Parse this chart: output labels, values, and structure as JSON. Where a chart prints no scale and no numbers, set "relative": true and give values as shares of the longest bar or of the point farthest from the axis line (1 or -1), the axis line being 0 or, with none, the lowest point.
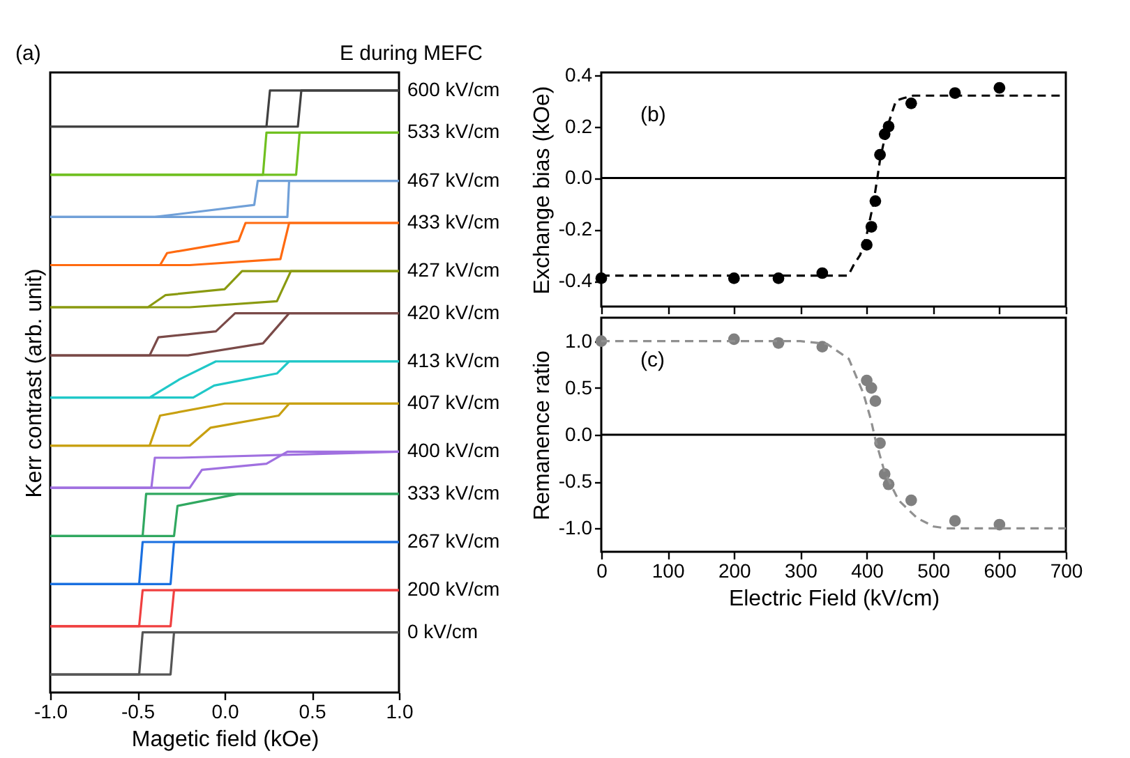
{
  "chart_data": [
    {
      "type": "line",
      "relative": true,
      "xlabel": "Magetic field (kOe)",
      "ylabel": "Kerr contrast (arb. unit)",
      "annotations": [
        "(a)",
        "E during MEFC"
      ],
      "xlim": [
        -1,
        1
      ],
      "xticks": [
        {
          "value": -1,
          "label": "-1.0"
        },
        {
          "value": -0.5,
          "label": "-0.5"
        },
        {
          "value": 0,
          "label": "0.0"
        },
        0.5,
        {
          "value": 1,
          "label": "1.0"
        }
      ],
      "grid": false,
      "tick_labels": "x",
      "series": [
        {
          "name": "600 kV/cm",
          "color": "#404040",
          "x": [
            -1,
            0.42,
            0.44,
            1
          ],
          "values": [
            0.94,
            0.94,
            1,
            1
          ]
        },
        {
          "color": "#404040",
          "x": [
            -1,
            0.24,
            0.26,
            1
          ],
          "values": [
            0.94,
            0.94,
            1,
            1
          ]
        },
        {
          "name": "533 kV/cm",
          "color": "#70c020",
          "x": [
            -1,
            0.41,
            0.43,
            1
          ],
          "values": [
            0.86,
            0.86,
            0.93,
            0.93
          ]
        },
        {
          "color": "#70c020",
          "x": [
            -1,
            0.22,
            0.24,
            1
          ],
          "values": [
            0.86,
            0.86,
            0.93,
            0.93
          ]
        },
        {
          "name": "467 kV/cm",
          "color": "#70a0d8",
          "x": [
            -1,
            0.36,
            0.37,
            1
          ],
          "values": [
            0.79,
            0.79,
            0.85,
            0.85
          ]
        },
        {
          "color": "#70a0d8",
          "x": [
            -1,
            -0.4,
            0.17,
            0.19,
            1
          ],
          "values": [
            0.79,
            0.79,
            0.81,
            0.85,
            0.85
          ]
        },
        {
          "name": "433 kV/cm",
          "color": "#ff6a10",
          "x": [
            -1,
            -0.2,
            0.32,
            0.37,
            1
          ],
          "values": [
            0.71,
            0.71,
            0.72,
            0.78,
            0.78
          ]
        },
        {
          "color": "#ff6a10",
          "x": [
            -1,
            -0.37,
            -0.33,
            0.08,
            0.12,
            1
          ],
          "values": [
            0.71,
            0.71,
            0.73,
            0.75,
            0.78,
            0.78
          ]
        },
        {
          "name": "427 kV/cm",
          "color": "#8a9a10",
          "x": [
            -1,
            -0.2,
            0.3,
            0.38,
            1
          ],
          "values": [
            0.64,
            0.64,
            0.65,
            0.7,
            0.7
          ]
        },
        {
          "color": "#8a9a10",
          "x": [
            -1,
            -0.44,
            -0.34,
            0.0,
            0.1,
            1
          ],
          "values": [
            0.64,
            0.64,
            0.66,
            0.67,
            0.7,
            0.7
          ]
        },
        {
          "name": "420 kV/cm",
          "color": "#7a4a48",
          "x": [
            -1,
            -0.21,
            0.22,
            0.37,
            1
          ],
          "values": [
            0.56,
            0.56,
            0.58,
            0.63,
            0.63
          ]
        },
        {
          "color": "#7a4a48",
          "x": [
            -1,
            -0.43,
            -0.38,
            -0.05,
            0.06,
            1
          ],
          "values": [
            0.56,
            0.56,
            0.59,
            0.6,
            0.63,
            0.63
          ]
        },
        {
          "name": "413 kV/cm",
          "color": "#20c8c8",
          "x": [
            -1,
            -0.18,
            -0.06,
            0.3,
            0.37,
            1
          ],
          "values": [
            0.49,
            0.49,
            0.51,
            0.53,
            0.55,
            0.55
          ]
        },
        {
          "color": "#20c8c8",
          "x": [
            -1,
            -0.43,
            -0.26,
            -0.05,
            1
          ],
          "values": [
            0.49,
            0.49,
            0.52,
            0.55,
            0.55
          ]
        },
        {
          "name": "407 kV/cm",
          "color": "#c8a010",
          "x": [
            -1,
            -0.2,
            -0.08,
            0.31,
            0.37,
            1
          ],
          "values": [
            0.41,
            0.41,
            0.44,
            0.46,
            0.48,
            0.48
          ]
        },
        {
          "color": "#c8a010",
          "x": [
            -1,
            -0.43,
            -0.37,
            0.0,
            1
          ],
          "values": [
            0.41,
            0.41,
            0.46,
            0.48,
            0.48
          ]
        },
        {
          "name": "400 kV/cm",
          "color": "#a070e0",
          "x": [
            -1,
            -0.2,
            -0.13,
            0.24,
            0.36,
            1
          ],
          "values": [
            0.34,
            0.34,
            0.37,
            0.38,
            0.4,
            0.4
          ]
        },
        {
          "color": "#a070e0",
          "x": [
            -1,
            -0.42,
            -0.4,
            -0.26,
            1
          ],
          "values": [
            0.34,
            0.34,
            0.39,
            0.39,
            0.4
          ]
        },
        {
          "name": "333 kV/cm",
          "color": "#30a860",
          "x": [
            -1,
            -0.29,
            -0.27,
            0.08,
            1
          ],
          "values": [
            0.26,
            0.26,
            0.31,
            0.33,
            0.33
          ]
        },
        {
          "color": "#30a860",
          "x": [
            -1,
            -0.47,
            -0.45,
            1
          ],
          "values": [
            0.26,
            0.26,
            0.33,
            0.33
          ]
        },
        {
          "name": "267 kV/cm",
          "color": "#1a70e0",
          "x": [
            -1,
            -0.31,
            -0.29,
            1
          ],
          "values": [
            0.18,
            0.18,
            0.25,
            0.25
          ]
        },
        {
          "color": "#1a70e0",
          "x": [
            -1,
            -0.49,
            -0.47,
            1
          ],
          "values": [
            0.18,
            0.18,
            0.25,
            0.25
          ]
        },
        {
          "name": "200 kV/cm",
          "color": "#f04040",
          "x": [
            -1,
            -0.31,
            -0.29,
            1
          ],
          "values": [
            0.11,
            0.11,
            0.17,
            0.17
          ]
        },
        {
          "color": "#f04040",
          "x": [
            -1,
            -0.49,
            -0.47,
            1
          ],
          "values": [
            0.11,
            0.11,
            0.17,
            0.17
          ]
        },
        {
          "name": "0 kV/cm",
          "color": "#555555",
          "x": [
            -1,
            -0.31,
            -0.29,
            1
          ],
          "values": [
            0.03,
            0.03,
            0.1,
            0.1
          ]
        },
        {
          "color": "#555555",
          "x": [
            -1,
            -0.49,
            -0.47,
            1
          ],
          "values": [
            0.03,
            0.03,
            0.1,
            0.1
          ]
        }
      ]
    },
    {
      "type": "scatter",
      "ylabel": "Exchange bias (kOe)",
      "annotations": [
        "(b)"
      ],
      "grid": false,
      "tick_labels": "y",
      "xlim": [
        0,
        700
      ],
      "xticks": [
        0,
        100,
        200,
        300,
        400,
        500,
        600,
        700
      ],
      "ylim": [
        -0.5,
        0.41
      ],
      "yticks": [
        -0.4,
        -0.2,
        {
          "value": 0,
          "label": "0.0"
        },
        0.2,
        0.4
      ],
      "ref_lines": [
        {
          "axis": "y",
          "value": 0,
          "color": "#000000"
        }
      ],
      "series": [
        {
          "color": "#000000",
          "marker": "circle",
          "x": [
            0,
            200,
            267,
            333,
            400,
            407,
            413,
            420,
            427,
            433,
            467,
            533,
            600
          ],
          "values": [
            -0.39,
            -0.39,
            -0.39,
            -0.37,
            -0.26,
            -0.19,
            -0.09,
            0.09,
            0.17,
            0.2,
            0.29,
            0.33,
            0.35
          ]
        },
        {
          "type": "line",
          "marker": "none",
          "line_style": "dashed",
          "color": "#000000",
          "x": [
            0,
            350,
            372,
            380,
            390,
            400,
            410,
            416,
            420,
            430,
            444,
            455,
            470,
            700
          ],
          "values": [
            -0.38,
            -0.38,
            -0.38,
            -0.34,
            -0.3,
            -0.22,
            -0.1,
            0.0,
            0.07,
            0.19,
            0.3,
            0.31,
            0.32,
            0.32
          ]
        }
      ]
    },
    {
      "type": "scatter",
      "xlabel": "Electric Field (kV/cm)",
      "ylabel": "Remanence ratio",
      "annotations": [
        "(c)"
      ],
      "grid": false,
      "xlim": [
        0,
        700
      ],
      "xticks": [
        0,
        100,
        200,
        300,
        400,
        500,
        600,
        700
      ],
      "ylim": [
        -1.25,
        1.25
      ],
      "yticks": [
        {
          "value": -1,
          "label": "-1.0"
        },
        -0.5,
        {
          "value": 0,
          "label": "0.0"
        },
        0.5,
        {
          "value": 1,
          "label": "1.0"
        }
      ],
      "ref_lines": [
        {
          "axis": "y",
          "value": 0,
          "color": "#000000"
        }
      ],
      "series": [
        {
          "color": "#808080",
          "marker": "circle",
          "x": [
            0,
            200,
            267,
            333,
            400,
            407,
            413,
            420,
            427,
            433,
            467,
            533,
            600
          ],
          "values": [
            1.0,
            1.02,
            0.98,
            0.94,
            0.58,
            0.5,
            0.36,
            -0.09,
            -0.42,
            -0.53,
            -0.7,
            -0.92,
            -0.96
          ]
        },
        {
          "type": "line",
          "marker": "none",
          "line_style": "dashed",
          "color": "#909090",
          "x": [
            0,
            300,
            340,
            373,
            395,
            406,
            413,
            427,
            448,
            476,
            501,
            520,
            700
          ],
          "values": [
            1.0,
            1.0,
            0.97,
            0.81,
            0.44,
            0.17,
            -0.05,
            -0.4,
            -0.7,
            -0.89,
            -0.98,
            -1.0,
            -1.0
          ]
        }
      ]
    }
  ]
}
